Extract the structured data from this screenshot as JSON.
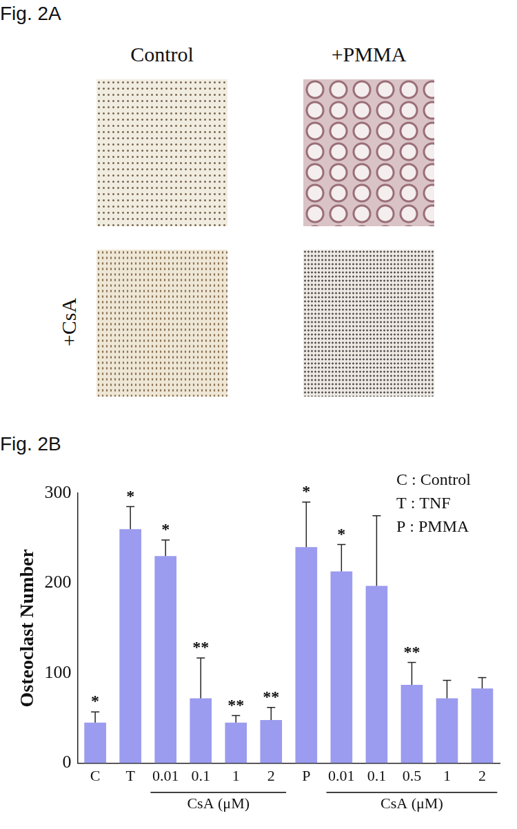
{
  "panel_a": {
    "label": "Fig. 2A",
    "columns": [
      "Control",
      "+PMMA"
    ],
    "row_label": "+CsA"
  },
  "panel_b_label": "Fig. 2B",
  "chart_data": {
    "type": "bar",
    "y_label": "Osteoclast Number",
    "categories": [
      "C",
      "T",
      "0.01",
      "0.1",
      "1",
      "2",
      "P",
      "0.01",
      "0.1",
      "0.5",
      "1",
      "2"
    ],
    "values": [
      45,
      260,
      230,
      72,
      45,
      48,
      240,
      213,
      197,
      87,
      72,
      83
    ],
    "error": [
      12,
      25,
      18,
      45,
      8,
      14,
      50,
      30,
      78,
      25,
      20,
      12
    ],
    "significance": [
      "*",
      "*",
      "*",
      "**",
      "**",
      "**",
      "*",
      "*",
      null,
      "**",
      null,
      null
    ],
    "groups": [
      {
        "label": "CsA (μM)",
        "from": 2,
        "to": 5
      },
      {
        "label": "CsA (μM)",
        "from": 7,
        "to": 11
      }
    ],
    "key": [
      "C : Control",
      "T : TNF",
      "P : PMMA"
    ],
    "color": "#9b9bef",
    "ylim": [
      0,
      300
    ],
    "yticks": [
      0,
      100,
      200,
      300
    ],
    "grid": false
  }
}
